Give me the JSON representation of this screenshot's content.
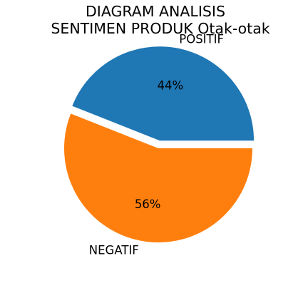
{
  "chart_data": {
    "type": "pie",
    "title_lines": [
      "DIAGRAM ANALISIS",
      "SENTIMEN PRODUK Otak-otak"
    ],
    "slices": [
      {
        "label": "POSITIF",
        "value": 44,
        "pct_label": "44%",
        "color": "#1f77b4",
        "exploded": true
      },
      {
        "label": "NEGATIF",
        "value": 56,
        "pct_label": "56%",
        "color": "#ff7f0e",
        "exploded": false
      }
    ],
    "start_angle_deg": 0,
    "direction": "counterclockwise"
  }
}
